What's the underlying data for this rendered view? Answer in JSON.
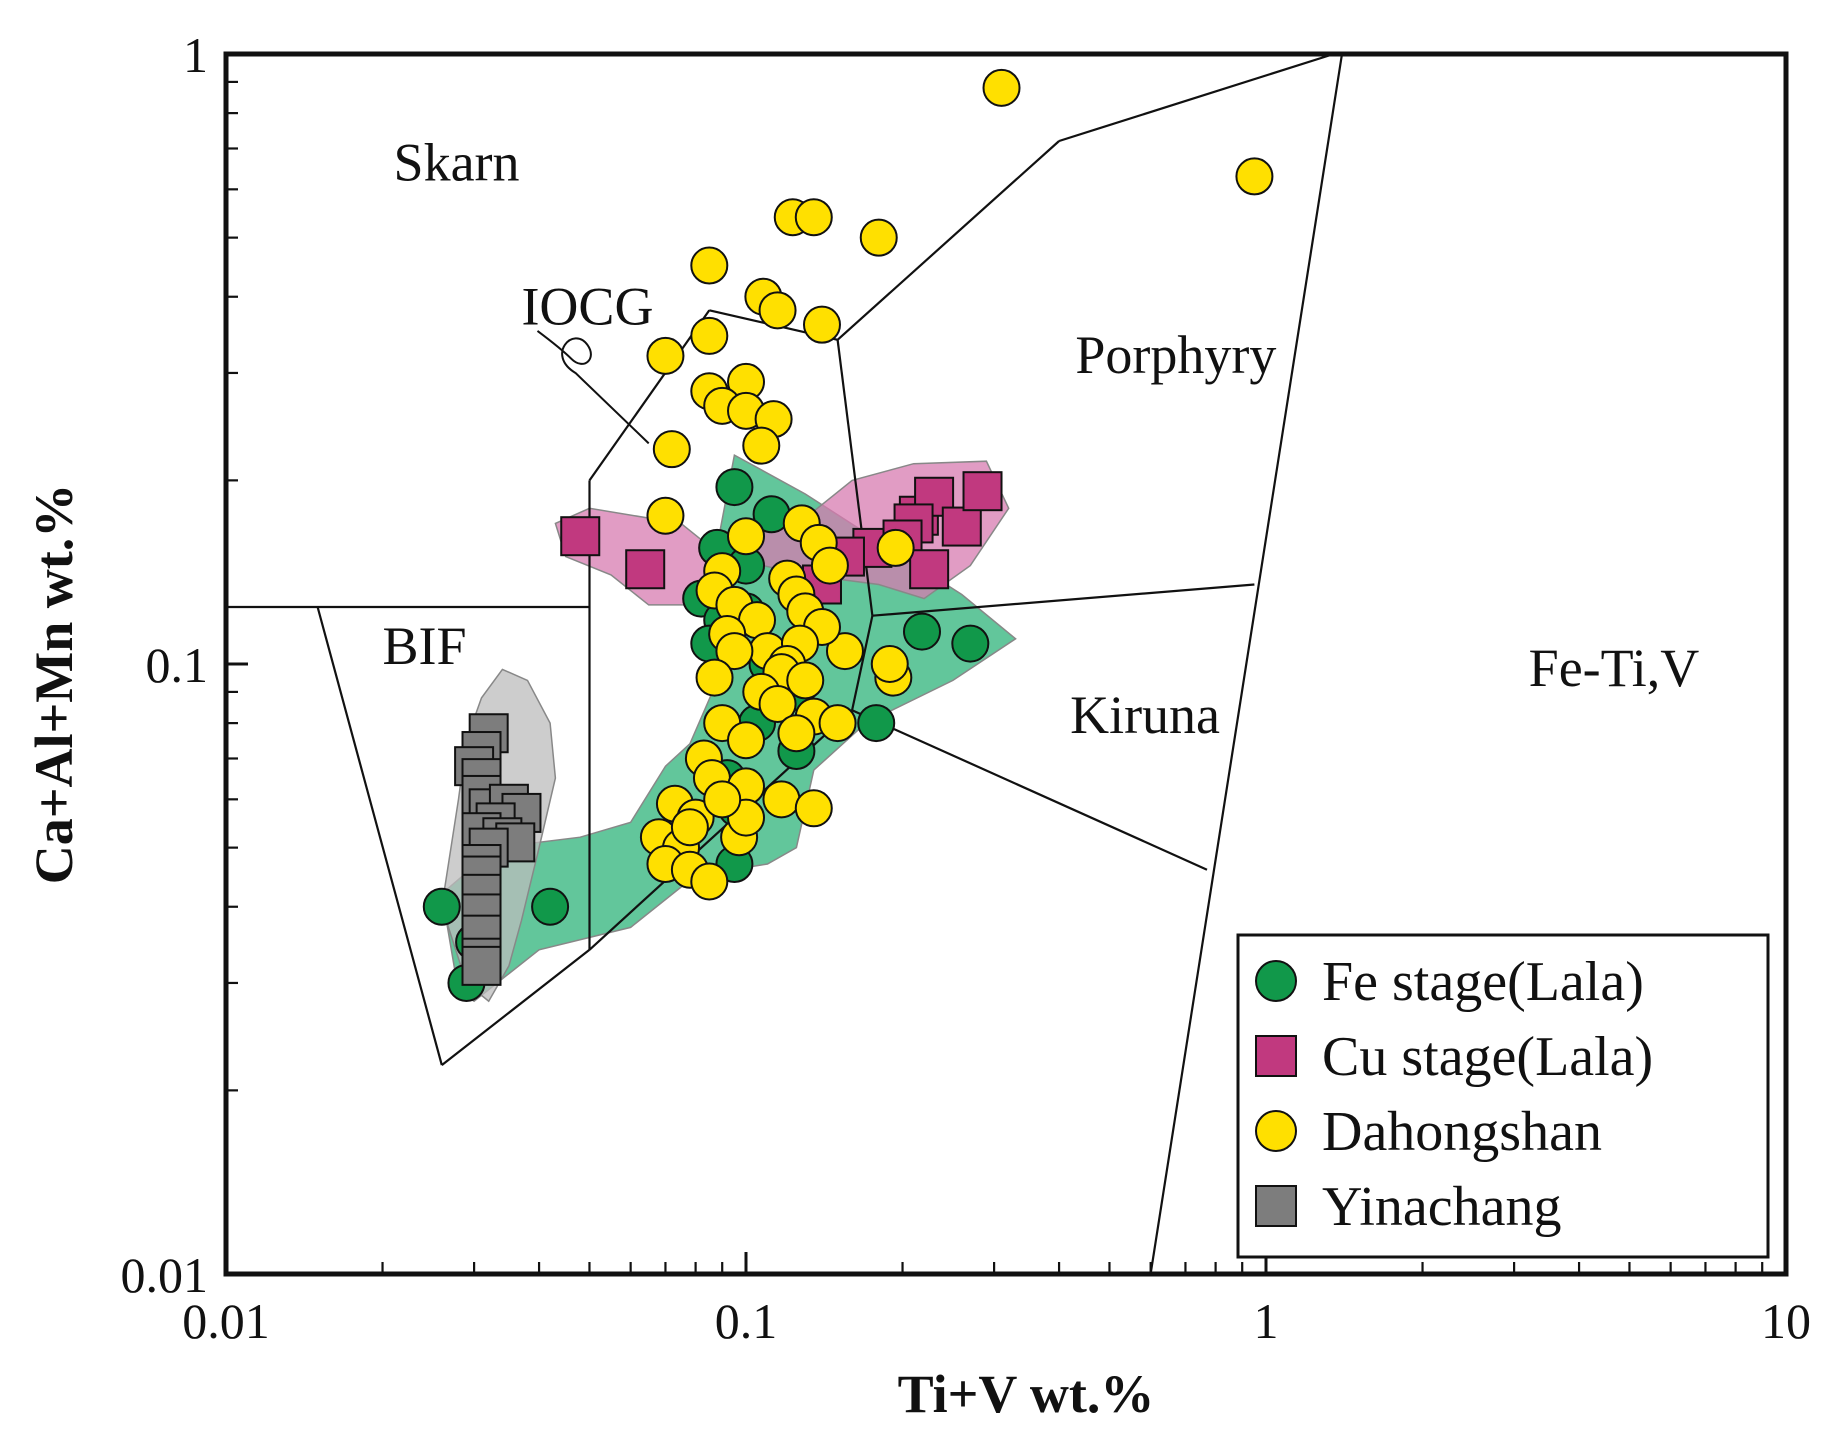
{
  "chart_data": {
    "type": "scatter",
    "title": "",
    "xlabel": "Ti+V wt.%",
    "ylabel": "Ca+Al+Mn wt.%",
    "xscale": "log",
    "yscale": "log",
    "xlim": [
      0.01,
      10
    ],
    "ylim": [
      0.01,
      1
    ],
    "xticks": [
      {
        "v": 0.01,
        "label": "0.01"
      },
      {
        "v": 0.1,
        "label": "0.1"
      },
      {
        "v": 1,
        "label": "1"
      },
      {
        "v": 10,
        "label": "10"
      }
    ],
    "yticks": [
      {
        "v": 0.01,
        "label": "0.01"
      },
      {
        "v": 0.1,
        "label": "0.1"
      },
      {
        "v": 1,
        "label": "1"
      }
    ],
    "regions": [
      {
        "name": "Skarn",
        "x": 0.021,
        "y": 0.62
      },
      {
        "name": "IOCG",
        "x": 0.037,
        "y": 0.36
      },
      {
        "name": "Porphyry",
        "x": 0.43,
        "y": 0.3
      },
      {
        "name": "BIF",
        "x": 0.02,
        "y": 0.1
      },
      {
        "name": "Kiruna",
        "x": 0.42,
        "y": 0.077
      },
      {
        "name": "Fe-Ti,V",
        "x": 3.2,
        "y": 0.092
      }
    ],
    "boundaries": [
      [
        [
          0.01,
          0.124
        ],
        [
          0.05,
          0.124
        ]
      ],
      [
        [
          0.015,
          0.124
        ],
        [
          0.026,
          0.022
        ]
      ],
      [
        [
          0.026,
          0.022
        ],
        [
          0.05,
          0.034
        ]
      ],
      [
        [
          0.05,
          0.034
        ],
        [
          0.05,
          0.2
        ]
      ],
      [
        [
          0.05,
          0.2
        ],
        [
          0.085,
          0.38
        ]
      ],
      [
        [
          0.085,
          0.38
        ],
        [
          0.15,
          0.34
        ]
      ],
      [
        [
          0.15,
          0.34
        ],
        [
          0.4,
          0.72
        ]
      ],
      [
        [
          0.4,
          0.72
        ],
        [
          1.35,
          1.0
        ]
      ],
      [
        [
          0.15,
          0.34
        ],
        [
          0.175,
          0.12
        ]
      ],
      [
        [
          0.05,
          0.034
        ],
        [
          0.16,
          0.084
        ]
      ],
      [
        [
          0.16,
          0.084
        ],
        [
          0.175,
          0.12
        ]
      ],
      [
        [
          0.175,
          0.12
        ],
        [
          0.95,
          0.135
        ]
      ],
      [
        [
          0.16,
          0.084
        ],
        [
          0.77,
          0.046
        ]
      ],
      [
        [
          1.4,
          1.0
        ],
        [
          0.6,
          0.01
        ]
      ]
    ],
    "iocg_leader": [
      [
        0.065,
        0.23
      ],
      [
        0.047,
        0.3
      ]
    ],
    "series": [
      {
        "name": "Fe stage(Lala)",
        "marker": "circle",
        "color": "#11984a",
        "hull_color": "#2eb37a",
        "hull": [
          [
            0.028,
            0.029
          ],
          [
            0.026,
            0.042
          ],
          [
            0.033,
            0.05
          ],
          [
            0.048,
            0.052
          ],
          [
            0.06,
            0.055
          ],
          [
            0.07,
            0.068
          ],
          [
            0.078,
            0.074
          ],
          [
            0.09,
            0.098
          ],
          [
            0.083,
            0.12
          ],
          [
            0.095,
            0.22
          ],
          [
            0.13,
            0.19
          ],
          [
            0.2,
            0.15
          ],
          [
            0.26,
            0.13
          ],
          [
            0.33,
            0.11
          ],
          [
            0.25,
            0.094
          ],
          [
            0.17,
            0.08
          ],
          [
            0.135,
            0.067
          ],
          [
            0.125,
            0.05
          ],
          [
            0.11,
            0.047
          ],
          [
            0.08,
            0.045
          ],
          [
            0.06,
            0.037
          ],
          [
            0.04,
            0.034
          ],
          [
            0.03,
            0.028
          ]
        ],
        "points": [
          [
            0.095,
            0.195
          ],
          [
            0.112,
            0.176
          ],
          [
            0.088,
            0.155
          ],
          [
            0.1,
            0.145
          ],
          [
            0.082,
            0.128
          ],
          [
            0.09,
            0.118
          ],
          [
            0.1,
            0.122
          ],
          [
            0.085,
            0.108
          ],
          [
            0.11,
            0.1
          ],
          [
            0.12,
            0.095
          ],
          [
            0.125,
            0.09
          ],
          [
            0.105,
            0.08
          ],
          [
            0.125,
            0.072
          ],
          [
            0.178,
            0.08
          ],
          [
            0.218,
            0.113
          ],
          [
            0.27,
            0.108
          ],
          [
            0.092,
            0.065
          ],
          [
            0.096,
            0.058
          ],
          [
            0.095,
            0.047
          ],
          [
            0.042,
            0.04
          ],
          [
            0.026,
            0.04
          ],
          [
            0.03,
            0.035
          ],
          [
            0.029,
            0.03
          ]
        ]
      },
      {
        "name": "Cu stage(Lala)",
        "marker": "square",
        "color": "#c1397f",
        "hull_color": "#d77bb0",
        "hull": [
          [
            0.043,
            0.17
          ],
          [
            0.045,
            0.15
          ],
          [
            0.055,
            0.14
          ],
          [
            0.065,
            0.125
          ],
          [
            0.08,
            0.125
          ],
          [
            0.095,
            0.14
          ],
          [
            0.105,
            0.18
          ],
          [
            0.135,
            0.178
          ],
          [
            0.16,
            0.2
          ],
          [
            0.21,
            0.213
          ],
          [
            0.29,
            0.215
          ],
          [
            0.32,
            0.18
          ],
          [
            0.27,
            0.145
          ],
          [
            0.22,
            0.128
          ],
          [
            0.18,
            0.135
          ],
          [
            0.13,
            0.14
          ],
          [
            0.09,
            0.15
          ],
          [
            0.075,
            0.17
          ],
          [
            0.05,
            0.18
          ]
        ],
        "points": [
          [
            0.048,
            0.162
          ],
          [
            0.064,
            0.143
          ],
          [
            0.215,
            0.175
          ],
          [
            0.23,
            0.188
          ],
          [
            0.26,
            0.168
          ],
          [
            0.285,
            0.192
          ],
          [
            0.21,
            0.17
          ],
          [
            0.175,
            0.155
          ],
          [
            0.2,
            0.16
          ],
          [
            0.225,
            0.143
          ],
          [
            0.155,
            0.15
          ],
          [
            0.14,
            0.135
          ]
        ]
      },
      {
        "name": "Dahongshan",
        "marker": "circle",
        "color": "#ffe000",
        "hull_color": "",
        "hull": [],
        "points": [
          [
            0.31,
            0.88
          ],
          [
            0.95,
            0.63
          ],
          [
            0.123,
            0.54
          ],
          [
            0.135,
            0.54
          ],
          [
            0.18,
            0.5
          ],
          [
            0.085,
            0.45
          ],
          [
            0.108,
            0.4
          ],
          [
            0.115,
            0.38
          ],
          [
            0.14,
            0.36
          ],
          [
            0.07,
            0.32
          ],
          [
            0.085,
            0.345
          ],
          [
            0.1,
            0.29
          ],
          [
            0.085,
            0.28
          ],
          [
            0.09,
            0.265
          ],
          [
            0.1,
            0.26
          ],
          [
            0.113,
            0.252
          ],
          [
            0.107,
            0.228
          ],
          [
            0.072,
            0.225
          ],
          [
            0.07,
            0.175
          ],
          [
            0.1,
            0.162
          ],
          [
            0.128,
            0.17
          ],
          [
            0.138,
            0.158
          ],
          [
            0.145,
            0.145
          ],
          [
            0.09,
            0.142
          ],
          [
            0.087,
            0.132
          ],
          [
            0.12,
            0.138
          ],
          [
            0.125,
            0.13
          ],
          [
            0.13,
            0.122
          ],
          [
            0.095,
            0.125
          ],
          [
            0.105,
            0.118
          ],
          [
            0.092,
            0.112
          ],
          [
            0.11,
            0.105
          ],
          [
            0.155,
            0.105
          ],
          [
            0.14,
            0.115
          ],
          [
            0.127,
            0.108
          ],
          [
            0.12,
            0.1
          ],
          [
            0.117,
            0.097
          ],
          [
            0.107,
            0.09
          ],
          [
            0.13,
            0.094
          ],
          [
            0.115,
            0.086
          ],
          [
            0.135,
            0.082
          ],
          [
            0.15,
            0.08
          ],
          [
            0.095,
            0.105
          ],
          [
            0.087,
            0.095
          ],
          [
            0.09,
            0.08
          ],
          [
            0.1,
            0.075
          ],
          [
            0.083,
            0.07
          ],
          [
            0.086,
            0.065
          ],
          [
            0.1,
            0.063
          ],
          [
            0.117,
            0.06
          ],
          [
            0.135,
            0.058
          ],
          [
            0.073,
            0.059
          ],
          [
            0.08,
            0.056
          ],
          [
            0.097,
            0.052
          ],
          [
            0.068,
            0.052
          ],
          [
            0.075,
            0.05
          ],
          [
            0.07,
            0.047
          ],
          [
            0.078,
            0.046
          ],
          [
            0.085,
            0.044
          ],
          [
            0.194,
            0.155
          ],
          [
            0.192,
            0.095
          ],
          [
            0.189,
            0.1
          ],
          [
            0.1,
            0.056
          ],
          [
            0.078,
            0.054
          ],
          [
            0.125,
            0.077
          ],
          [
            0.09,
            0.06
          ]
        ]
      },
      {
        "name": "Yinachang",
        "marker": "square",
        "color": "#7d7d7d",
        "hull_color": "#bcbcbc",
        "hull": [
          [
            0.029,
            0.03
          ],
          [
            0.026,
            0.04
          ],
          [
            0.028,
            0.06
          ],
          [
            0.029,
            0.075
          ],
          [
            0.031,
            0.088
          ],
          [
            0.034,
            0.098
          ],
          [
            0.038,
            0.094
          ],
          [
            0.042,
            0.08
          ],
          [
            0.043,
            0.065
          ],
          [
            0.04,
            0.05
          ],
          [
            0.037,
            0.038
          ],
          [
            0.035,
            0.032
          ],
          [
            0.032,
            0.028
          ]
        ],
        "points": [
          [
            0.032,
            0.077
          ],
          [
            0.031,
            0.072
          ],
          [
            0.03,
            0.068
          ],
          [
            0.031,
            0.065
          ],
          [
            0.031,
            0.061
          ],
          [
            0.032,
            0.058
          ],
          [
            0.035,
            0.059
          ],
          [
            0.037,
            0.057
          ],
          [
            0.033,
            0.055
          ],
          [
            0.031,
            0.053
          ],
          [
            0.034,
            0.052
          ],
          [
            0.036,
            0.051
          ],
          [
            0.032,
            0.05
          ],
          [
            0.031,
            0.047
          ],
          [
            0.031,
            0.045
          ],
          [
            0.031,
            0.042
          ],
          [
            0.031,
            0.039
          ],
          [
            0.031,
            0.036
          ],
          [
            0.031,
            0.033
          ],
          [
            0.031,
            0.032
          ]
        ]
      }
    ]
  }
}
